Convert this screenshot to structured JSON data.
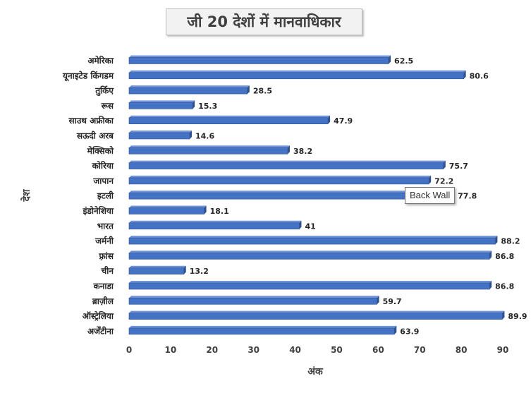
{
  "chart_data": {
    "type": "bar",
    "orientation": "horizontal",
    "title": "जी 20 देशों में मानवाधिकार",
    "xlabel": "अंक",
    "ylabel": "देश",
    "categories": [
      "अमेरिका",
      "यूनाइटेड किंगडम",
      "तुर्किए",
      "रूस",
      "साउथ अफ्रीका",
      "सऊदी अरब",
      "मेक्सिको",
      "कोरिया",
      "जापान",
      "इटली",
      "इंडोनेशिया",
      "भारत",
      "जर्मनी",
      "फ़्रांस",
      "चीन",
      "कनाडा",
      "ब्राज़ील",
      "ऑस्ट्रेलिया",
      "अर्जेंटीना"
    ],
    "values": [
      62.5,
      80.6,
      28.5,
      15.3,
      47.9,
      14.6,
      38.2,
      75.7,
      72.2,
      77.8,
      18.1,
      41,
      88.2,
      86.8,
      13.2,
      86.8,
      59.7,
      89.9,
      63.9
    ],
    "xlim": [
      0,
      90
    ],
    "xticks": [
      0,
      10,
      20,
      30,
      40,
      50,
      60,
      70,
      80,
      90
    ],
    "grid": false,
    "legend": "none",
    "data_labels": true,
    "bar_color": "#4472c4",
    "bar_edge_color": "#2f528f"
  },
  "tooltip": {
    "text": "Back Wall"
  }
}
